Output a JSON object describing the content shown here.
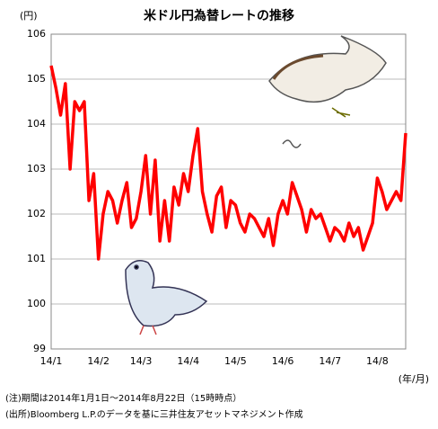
{
  "chart_data": {
    "type": "line",
    "title": "米ドル円為替レートの推移",
    "y_unit": "(円)",
    "x_unit": "(年/月)",
    "categories": [
      "14/1",
      null,
      null,
      null,
      null,
      null,
      null,
      null,
      null,
      null,
      "14/2",
      null,
      null,
      null,
      null,
      null,
      null,
      null,
      null,
      "14/3",
      null,
      null,
      null,
      null,
      null,
      null,
      null,
      null,
      null,
      "14/4",
      null,
      null,
      null,
      null,
      null,
      null,
      null,
      null,
      null,
      "14/5",
      null,
      null,
      null,
      null,
      null,
      null,
      null,
      null,
      null,
      "14/6",
      null,
      null,
      null,
      null,
      null,
      null,
      null,
      null,
      null,
      "14/7",
      null,
      null,
      null,
      null,
      null,
      null,
      null,
      null,
      null,
      "14/8",
      null,
      null,
      null,
      null,
      null,
      null
    ],
    "series": [
      {
        "color": "#ff0000",
        "values": [
          105.3,
          104.8,
          104.2,
          104.9,
          103.0,
          104.5,
          104.3,
          104.5,
          102.3,
          102.9,
          101.0,
          102.0,
          102.5,
          102.3,
          101.8,
          102.3,
          102.7,
          101.7,
          101.9,
          102.5,
          103.3,
          102.0,
          103.2,
          101.4,
          102.3,
          101.4,
          102.6,
          102.2,
          102.9,
          102.5,
          103.3,
          103.9,
          102.5,
          102.0,
          101.6,
          102.4,
          102.6,
          101.7,
          102.3,
          102.2,
          101.8,
          101.6,
          102.0,
          101.9,
          101.7,
          101.5,
          101.9,
          101.3,
          102.0,
          102.3,
          102.0,
          102.7,
          102.4,
          102.1,
          101.6,
          102.1,
          101.9,
          102.0,
          101.7,
          101.4,
          101.7,
          101.6,
          101.4,
          101.8,
          101.5,
          101.7,
          101.2,
          101.5,
          101.8,
          102.8,
          102.5,
          102.1,
          102.3,
          102.5,
          102.3,
          103.8
        ]
      }
    ],
    "ylim": [
      99,
      106
    ],
    "yticks": [
      99,
      100,
      101,
      102,
      103,
      104,
      105,
      106
    ],
    "grid": true,
    "notes": [
      "(注)期間は2014年1月1日～2014年8月22日（15時時点）",
      "(出所)Bloomberg L.P.のデータを基に三井住友アセットマネジメント作成"
    ]
  }
}
